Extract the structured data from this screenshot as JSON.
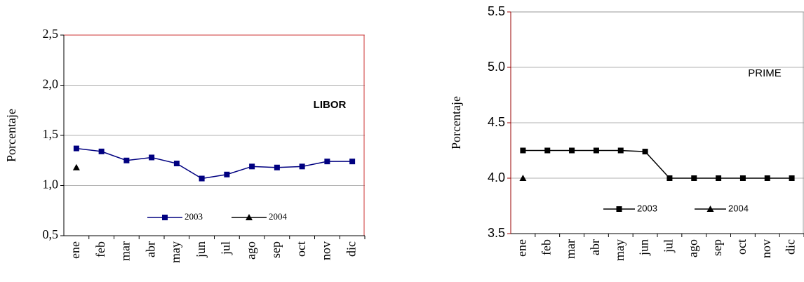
{
  "chart_data": [
    {
      "type": "line",
      "ylabel": "Porcentaje",
      "annotation": "LIBOR",
      "categories": [
        "ene",
        "feb",
        "mar",
        "abr",
        "may",
        "jun",
        "jul",
        "ago",
        "sep",
        "oct",
        "nov",
        "dic"
      ],
      "series": [
        {
          "name": "2003",
          "color": "#000080",
          "marker": "square",
          "values": [
            1.37,
            1.34,
            1.25,
            1.28,
            1.22,
            1.07,
            1.11,
            1.19,
            1.18,
            1.19,
            1.24,
            1.24
          ]
        },
        {
          "name": "2004",
          "color": "#000000",
          "marker": "triangle",
          "values": [
            1.18,
            null,
            null,
            null,
            null,
            null,
            null,
            null,
            null,
            null,
            null,
            null
          ]
        }
      ],
      "ylim": [
        0.5,
        2.5
      ],
      "yticks": [
        {
          "value": 0.5,
          "label": "0,5"
        },
        {
          "value": 1.0,
          "label": "1,0"
        },
        {
          "value": 1.5,
          "label": "1,5"
        },
        {
          "value": 2.0,
          "label": "2,0"
        },
        {
          "value": 2.5,
          "label": "2,5"
        }
      ],
      "grid": true
    },
    {
      "type": "line",
      "ylabel": "Porcentaje",
      "annotation": "PRIME",
      "categories": [
        "ene",
        "feb",
        "mar",
        "abr",
        "may",
        "jun",
        "jul",
        "ago",
        "sep",
        "oct",
        "nov",
        "dic"
      ],
      "series": [
        {
          "name": "2003",
          "color": "#000000",
          "marker": "square",
          "values": [
            4.25,
            4.25,
            4.25,
            4.25,
            4.25,
            4.24,
            4.0,
            4.0,
            4.0,
            4.0,
            4.0,
            4.0
          ]
        },
        {
          "name": "2004",
          "color": "#000000",
          "marker": "triangle",
          "values": [
            4.0,
            null,
            null,
            null,
            null,
            null,
            null,
            null,
            null,
            null,
            null,
            null
          ]
        }
      ],
      "ylim": [
        3.5,
        5.5
      ],
      "yticks": [
        {
          "value": 3.5,
          "label": "3.5"
        },
        {
          "value": 4.0,
          "label": "4.0"
        },
        {
          "value": 4.5,
          "label": "4.5"
        },
        {
          "value": 5.0,
          "label": "5.0"
        },
        {
          "value": 5.5,
          "label": "5.5"
        }
      ],
      "grid": true
    }
  ]
}
